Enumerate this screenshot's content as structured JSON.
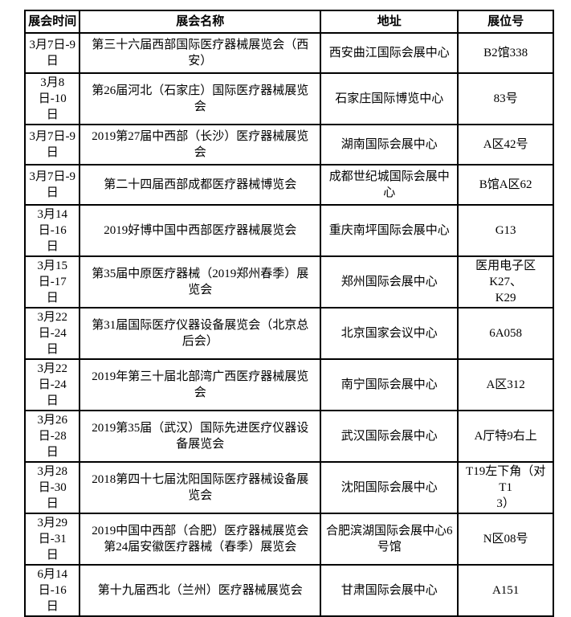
{
  "colors": {
    "border": "#000000",
    "text": "#000000",
    "background": "#ffffff"
  },
  "table": {
    "headers": [
      "展会时间",
      "展会名称",
      "地址",
      "展位号"
    ],
    "rows": [
      [
        "3月7日-9日",
        "第三十六届西部国际医疗器械展览会（西\n安）",
        "西安曲江国际会展中心",
        "B2馆338"
      ],
      [
        "3月8日-10\n日",
        "第26届河北（石家庄）国际医疗器械展览\n会",
        "石家庄国际博览中心",
        "83号"
      ],
      [
        "3月7日-9日",
        "2019第27届中西部（长沙）医疗器械展览\n会",
        "湖南国际会展中心",
        "A区42号"
      ],
      [
        "3月7日-9日",
        "第二十四届西部成都医疗器械博览会",
        "成都世纪城国际会展中\n心",
        "B馆A区62"
      ],
      [
        "3月14日-16\n日",
        "2019好博中国中西部医疗器械展览会",
        "重庆南坪国际会展中心",
        "G13"
      ],
      [
        "3月15日-17\n日",
        "第35届中原医疗器械（2019郑州春季）展\n览会",
        "郑州国际会展中心",
        "医用电子区K27、\nK29"
      ],
      [
        "3月22日-24\n日",
        "第31届国际医疗仪器设备展览会（北京总\n后会）",
        "北京国家会议中心",
        "6A058"
      ],
      [
        "3月22日-24\n日",
        "2019年第三十届北部湾广西医疗器械展览\n会",
        "南宁国际会展中心",
        "A区312"
      ],
      [
        "3月26日-28\n日",
        "2019第35届（武汉）国际先进医疗仪器设\n备展览会",
        "武汉国际会展中心",
        "A厅特9右上"
      ],
      [
        "3月28日-30\n日",
        "2018第四十七届沈阳国际医疗器械设备展\n览会",
        "沈阳国际会展中心",
        "T19左下角（对T1\n3）"
      ],
      [
        "3月29日-31\n日",
        "2019中国中西部（合肥）医疗器械展览会\n第24届安徽医疗器械（春季）展览会",
        "合肥滨湖国际会展中心6\n号馆",
        "N区08号"
      ],
      [
        "6月14日-16\n日",
        "第十九届西北（兰州）医疗器械展览会",
        "甘肃国际会展中心",
        "A151"
      ]
    ]
  }
}
